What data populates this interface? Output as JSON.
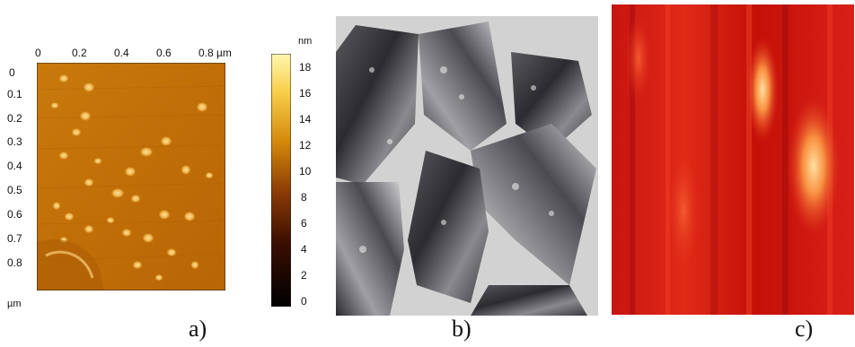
{
  "panel_a": {
    "x_ticks": [
      "0",
      "0.2",
      "0.4",
      "0.6",
      "0.8 µm"
    ],
    "y_ticks": [
      "0",
      "0.1",
      "0.2",
      "0.3",
      "0.4",
      "0.5",
      "0.6",
      "0.7",
      "0.8"
    ],
    "corner_unit": "µm",
    "colorbar_unit": "nm",
    "colorbar_ticks": [
      "18",
      "16",
      "14",
      "12",
      "10",
      "8",
      "6",
      "4",
      "2",
      "0"
    ],
    "caption": "a)"
  },
  "panel_b": {
    "caption": "b)"
  },
  "panel_c": {
    "caption": "c)"
  },
  "colors": {
    "afm_base": "#c8780a",
    "afm_dark": "#8a4a04",
    "afm_light": "#f4c66a",
    "photo_bg": "#d2d2d2",
    "heat_red": "#d01810",
    "heat_hot": "#ffd080"
  }
}
